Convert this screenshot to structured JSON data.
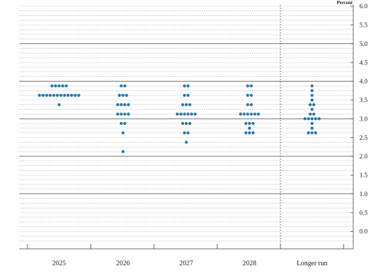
{
  "chart_data": {
    "type": "scatter",
    "ylabel": "Percent",
    "ylim": [
      -0.25,
      6.0
    ],
    "ymajor": [
      0.0,
      0.5,
      1.0,
      1.5,
      2.0,
      2.5,
      3.0,
      3.5,
      4.0,
      4.5,
      5.0,
      5.5,
      6.0
    ],
    "ytick_labels": [
      "0.0",
      "0.5",
      "1.0",
      "1.5",
      "2.0",
      "2.5",
      "3.0",
      "3.5",
      "4.0",
      "4.5",
      "5.0",
      "5.5",
      "6.0"
    ],
    "solid_lines_at": [
      1.0,
      2.0,
      3.0,
      4.0,
      5.0
    ],
    "grid_minor_step": 0.125,
    "categories": [
      "2025",
      "2026",
      "2027",
      "2028",
      "Longer run"
    ],
    "separator_before": "Longer run",
    "dot_color": "#1f77b4",
    "dots": [
      {
        "category": "2025",
        "rows": [
          {
            "value": 3.875,
            "count": 5
          },
          {
            "value": 3.625,
            "count": 12
          },
          {
            "value": 3.375,
            "count": 1
          }
        ]
      },
      {
        "category": "2026",
        "rows": [
          {
            "value": 3.875,
            "count": 2
          },
          {
            "value": 3.625,
            "count": 3
          },
          {
            "value": 3.375,
            "count": 4
          },
          {
            "value": 3.125,
            "count": 4
          },
          {
            "value": 2.875,
            "count": 2
          },
          {
            "value": 2.625,
            "count": 1
          },
          {
            "value": 2.125,
            "count": 1
          }
        ]
      },
      {
        "category": "2027",
        "rows": [
          {
            "value": 3.875,
            "count": 2
          },
          {
            "value": 3.625,
            "count": 2
          },
          {
            "value": 3.375,
            "count": 3
          },
          {
            "value": 3.125,
            "count": 6
          },
          {
            "value": 2.875,
            "count": 3
          },
          {
            "value": 2.625,
            "count": 2
          },
          {
            "value": 2.375,
            "count": 1
          }
        ]
      },
      {
        "category": "2028",
        "rows": [
          {
            "value": 3.875,
            "count": 2
          },
          {
            "value": 3.625,
            "count": 2
          },
          {
            "value": 3.375,
            "count": 2
          },
          {
            "value": 3.125,
            "count": 6
          },
          {
            "value": 2.875,
            "count": 3
          },
          {
            "value": 2.75,
            "count": 1
          },
          {
            "value": 2.625,
            "count": 3
          }
        ]
      },
      {
        "category": "Longer run",
        "rows": [
          {
            "value": 3.875,
            "count": 1
          },
          {
            "value": 3.75,
            "count": 1
          },
          {
            "value": 3.625,
            "count": 1
          },
          {
            "value": 3.5,
            "count": 1
          },
          {
            "value": 3.375,
            "count": 2
          },
          {
            "value": 3.25,
            "count": 1
          },
          {
            "value": 3.125,
            "count": 2
          },
          {
            "value": 3.0,
            "count": 5
          },
          {
            "value": 2.875,
            "count": 1
          },
          {
            "value": 2.75,
            "count": 1
          },
          {
            "value": 2.625,
            "count": 3
          }
        ]
      }
    ]
  }
}
